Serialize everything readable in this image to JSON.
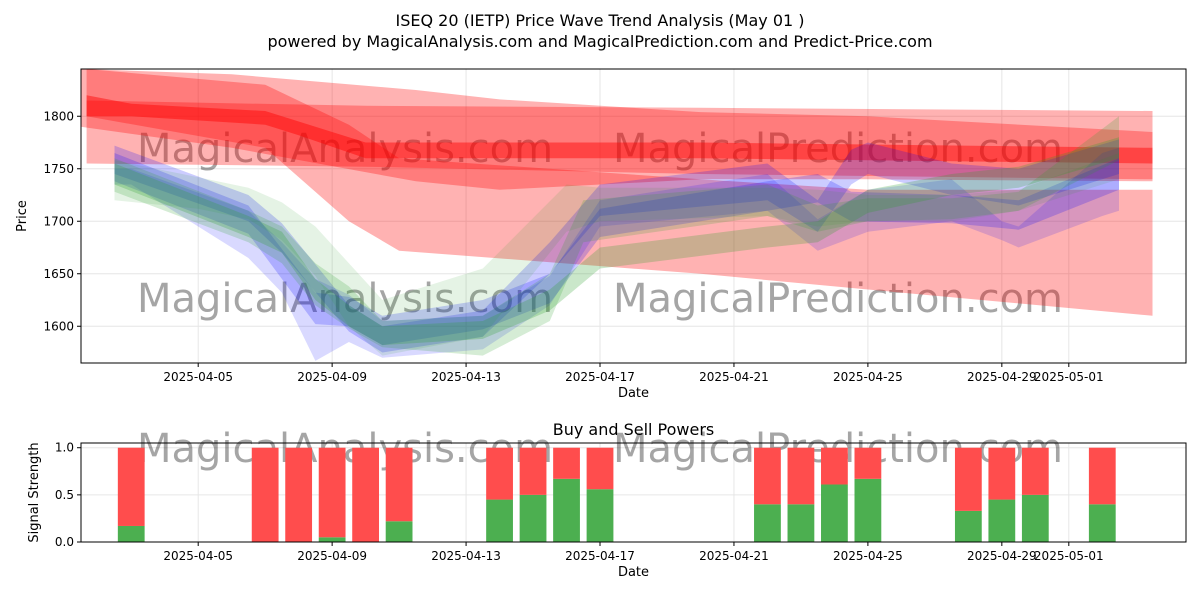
{
  "header": {
    "title": "ISEQ 20 (IETP) Price Wave Trend Analysis (May 01 )",
    "subtitle": "powered by MagicalAnalysis.com and MagicalPrediction.com and Predict-Price.com"
  },
  "watermarks": [
    "MagicalAnalysis.com",
    "MagicalPrediction.com"
  ],
  "colors": {
    "red": "#ff0000",
    "green": "#2ca02c",
    "blue": "#0000ff",
    "buy": "#4caf50",
    "sell": "#ff4d4d",
    "grid": "#e6e6e6",
    "watermark": "#d3d3d3"
  },
  "chart_data": [
    {
      "type": "area",
      "title": "",
      "xlabel": "Date",
      "ylabel": "Price",
      "xlim": [
        "2025-04-01T12:00",
        "2025-05-04T12:00"
      ],
      "ylim": [
        1565,
        1845
      ],
      "x_ticks": [
        "2025-04-05",
        "2025-04-09",
        "2025-04-13",
        "2025-04-17",
        "2025-04-21",
        "2025-04-25",
        "2025-04-29",
        "2025-05-01"
      ],
      "y_ticks": [
        1600,
        1650,
        1700,
        1750,
        1800
      ],
      "grid": true,
      "bands": [
        {
          "color": "red",
          "opacity": 0.3,
          "x": [
            "2025-04-01T16:00",
            "2025-04-10T00:00",
            "2025-04-20T00:00",
            "2025-05-03T12:00"
          ],
          "upper": [
            1815,
            1810,
            1808,
            1805
          ],
          "lower": [
            1755,
            1752,
            1745,
            1740
          ]
        },
        {
          "color": "red",
          "opacity": 0.3,
          "x": [
            "2025-04-01T12:00",
            "2025-04-06T00:00",
            "2025-04-11T12:00",
            "2025-04-14T00:00",
            "2025-04-20T00:00",
            "2025-04-25T00:00",
            "2025-05-03T12:00"
          ],
          "upper": [
            1845,
            1840,
            1825,
            1816,
            1804,
            1800,
            1785
          ],
          "lower": [
            1790,
            1770,
            1738,
            1730,
            1740,
            1740,
            1738
          ]
        },
        {
          "color": "red",
          "opacity": 0.3,
          "x": [
            "2025-04-01T16:00",
            "2025-04-07T00:00",
            "2025-04-09T12:00",
            "2025-04-11T00:00",
            "2025-04-20T00:00",
            "2025-04-25T00:00",
            "2025-05-03T12:00"
          ],
          "upper": [
            1845,
            1830,
            1792,
            1760,
            1740,
            1730,
            1730
          ],
          "lower": [
            1800,
            1770,
            1700,
            1672,
            1650,
            1635,
            1610
          ]
        },
        {
          "color": "red",
          "opacity": 0.45,
          "x": [
            "2025-04-01T16:00",
            "2025-04-03T00:00",
            "2025-04-07T00:00",
            "2025-04-08T00:00",
            "2025-04-10T00:00",
            "2025-04-20T00:00",
            "2025-05-03T12:00"
          ],
          "upper": [
            1820,
            1812,
            1805,
            1795,
            1775,
            1775,
            1770
          ],
          "lower": [
            1800,
            1800,
            1792,
            1782,
            1760,
            1760,
            1755
          ]
        },
        {
          "color": "blue",
          "opacity": 0.15,
          "x": [
            "2025-04-02T12:00",
            "2025-04-03T00:00",
            "2025-04-06T12:00",
            "2025-04-07T12:00",
            "2025-04-08T12:00",
            "2025-04-09T12:00",
            "2025-04-10T12:00",
            "2025-04-13T12:00",
            "2025-04-15T12:00",
            "2025-04-17T00:00",
            "2025-04-22T00:00",
            "2025-04-23T12:00",
            "2025-04-25T00:00",
            "2025-04-27T12:00",
            "2025-04-29T00:00",
            "2025-04-29T12:00",
            "2025-05-02T00:00",
            "2025-05-02T12:00"
          ],
          "upper": [
            1750,
            1750,
            1710,
            1680,
            1645,
            1630,
            1605,
            1610,
            1648,
            1720,
            1745,
            1702,
            1730,
            1740,
            1700,
            1695,
            1765,
            1770
          ],
          "lower": [
            1735,
            1735,
            1665,
            1632,
            1567,
            1585,
            1570,
            1578,
            1620,
            1695,
            1710,
            1672,
            1690,
            1700,
            1682,
            1675,
            1705,
            1710
          ]
        },
        {
          "color": "blue",
          "opacity": 0.2,
          "x": [
            "2025-04-02T12:00",
            "2025-04-06T12:00",
            "2025-04-07T12:00",
            "2025-04-09T12:00",
            "2025-04-10T12:00",
            "2025-04-13T12:00",
            "2025-04-15T12:00",
            "2025-04-17T00:00",
            "2025-04-22T00:00",
            "2025-04-23T12:00",
            "2025-04-24T12:00",
            "2025-04-25T00:00",
            "2025-04-27T12:00",
            "2025-04-29T12:00",
            "2025-05-02T12:00"
          ],
          "upper": [
            1772,
            1725,
            1698,
            1620,
            1600,
            1615,
            1680,
            1735,
            1755,
            1720,
            1768,
            1775,
            1755,
            1750,
            1778
          ],
          "lower": [
            1745,
            1700,
            1670,
            1595,
            1575,
            1590,
            1650,
            1705,
            1720,
            1690,
            1735,
            1745,
            1725,
            1715,
            1745
          ]
        },
        {
          "color": "blue",
          "opacity": 0.2,
          "x": [
            "2025-04-02T12:00",
            "2025-04-06T12:00",
            "2025-04-08T12:00",
            "2025-04-09T12:00",
            "2025-04-10T12:00",
            "2025-04-13T12:00",
            "2025-04-15T12:00",
            "2025-04-17T00:00",
            "2025-04-22T00:00",
            "2025-04-23T12:00",
            "2025-04-24T12:00",
            "2025-04-27T12:00",
            "2025-04-29T12:00",
            "2025-05-02T12:00"
          ],
          "upper": [
            1765,
            1715,
            1632,
            1628,
            1610,
            1625,
            1650,
            1712,
            1738,
            1745,
            1728,
            1725,
            1720,
            1760
          ],
          "lower": [
            1738,
            1688,
            1602,
            1600,
            1582,
            1597,
            1622,
            1685,
            1710,
            1718,
            1700,
            1698,
            1692,
            1730
          ]
        },
        {
          "color": "green",
          "opacity": 0.12,
          "x": [
            "2025-04-02T12:00",
            "2025-04-05T00:00",
            "2025-04-06T12:00",
            "2025-04-07T12:00",
            "2025-04-08T12:00",
            "2025-04-09T12:00",
            "2025-04-10T12:00",
            "2025-04-13T12:00",
            "2025-04-16T00:00",
            "2025-04-17T00:00",
            "2025-04-22T00:00",
            "2025-04-23T12:00",
            "2025-04-25T00:00",
            "2025-04-27T12:00",
            "2025-04-29T12:00",
            "2025-05-02T12:00"
          ],
          "upper": [
            1758,
            1742,
            1732,
            1718,
            1695,
            1660,
            1625,
            1655,
            1735,
            1732,
            1732,
            1730,
            1725,
            1725,
            1730,
            1765
          ],
          "lower": [
            1720,
            1712,
            1702,
            1682,
            1648,
            1600,
            1572,
            1590,
            1690,
            1700,
            1705,
            1695,
            1700,
            1700,
            1710,
            1740
          ]
        },
        {
          "color": "green",
          "opacity": 0.2,
          "x": [
            "2025-04-02T12:00",
            "2025-04-06T12:00",
            "2025-04-07T12:00",
            "2025-04-08T12:00",
            "2025-04-09T12:00",
            "2025-04-10T12:00",
            "2025-04-13T12:00",
            "2025-04-15T12:00",
            "2025-04-16T12:00",
            "2025-04-22T00:00",
            "2025-04-23T12:00",
            "2025-04-25T00:00",
            "2025-04-27T12:00",
            "2025-04-29T12:00",
            "2025-05-02T12:00"
          ],
          "upper": [
            1760,
            1710,
            1695,
            1660,
            1638,
            1605,
            1610,
            1650,
            1720,
            1735,
            1715,
            1722,
            1722,
            1728,
            1800
          ],
          "lower": [
            1728,
            1680,
            1660,
            1620,
            1598,
            1580,
            1572,
            1605,
            1680,
            1705,
            1690,
            1700,
            1702,
            1710,
            1758
          ]
        },
        {
          "color": "green",
          "opacity": 0.25,
          "x": [
            "2025-04-02T12:00",
            "2025-04-06T12:00",
            "2025-04-07T12:00",
            "2025-04-08T12:00",
            "2025-04-09T12:00",
            "2025-04-10T12:00",
            "2025-04-13T12:00",
            "2025-04-15T12:00",
            "2025-04-17T00:00",
            "2025-04-22T00:00",
            "2025-04-23T12:00",
            "2025-04-25T00:00",
            "2025-04-27T12:00",
            "2025-04-29T12:00",
            "2025-05-02T12:00"
          ],
          "upper": [
            1755,
            1705,
            1690,
            1645,
            1620,
            1600,
            1605,
            1635,
            1675,
            1695,
            1700,
            1730,
            1745,
            1752,
            1780
          ],
          "lower": [
            1735,
            1685,
            1670,
            1625,
            1600,
            1582,
            1588,
            1615,
            1655,
            1675,
            1680,
            1708,
            1725,
            1732,
            1760
          ]
        }
      ]
    },
    {
      "type": "bar",
      "title": "Buy and Sell Powers",
      "xlabel": "Date",
      "ylabel": "Signal Strength",
      "xlim": [
        "2025-04-01T12:00",
        "2025-05-04T12:00"
      ],
      "ylim": [
        0,
        1.05
      ],
      "x_ticks": [
        "2025-04-05",
        "2025-04-09",
        "2025-04-13",
        "2025-04-17",
        "2025-04-21",
        "2025-04-25",
        "2025-04-29",
        "2025-05-01"
      ],
      "y_ticks": [
        0.0,
        0.5,
        1.0
      ],
      "grid": true,
      "categories": [
        "2025-04-03",
        "2025-04-07",
        "2025-04-08",
        "2025-04-09",
        "2025-04-10",
        "2025-04-11",
        "2025-04-14",
        "2025-04-15",
        "2025-04-16",
        "2025-04-17",
        "2025-04-22",
        "2025-04-23",
        "2025-04-24",
        "2025-04-25",
        "2025-04-28",
        "2025-04-29",
        "2025-04-30",
        "2025-05-02"
      ],
      "series": [
        {
          "name": "Buy",
          "values": [
            0.17,
            0.0,
            0.0,
            0.05,
            0.0,
            0.22,
            0.45,
            0.5,
            0.67,
            0.56,
            0.4,
            0.4,
            0.61,
            0.67,
            0.33,
            0.45,
            0.5,
            0.4
          ]
        },
        {
          "name": "Sell",
          "values": [
            0.83,
            1.0,
            1.0,
            0.95,
            1.0,
            0.78,
            0.55,
            0.5,
            0.33,
            0.44,
            0.6,
            0.6,
            0.39,
            0.33,
            0.67,
            0.55,
            0.5,
            0.6
          ]
        }
      ]
    }
  ]
}
